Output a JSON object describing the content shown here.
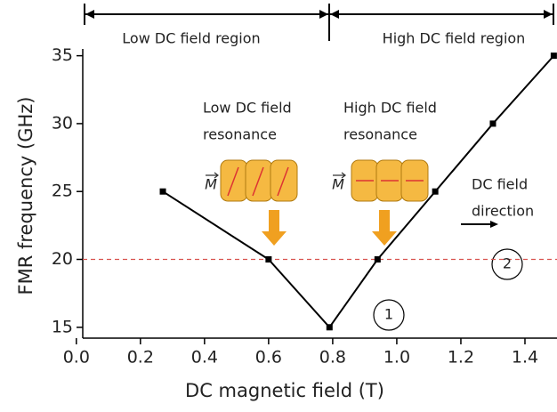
{
  "chart_data": {
    "type": "line",
    "x_label": "DC magnetic field (T)",
    "y_label": "FMR frequency (GHz)",
    "x": [
      0.27,
      0.6,
      0.79,
      0.94,
      1.12,
      1.3,
      1.49
    ],
    "series": [
      {
        "color": "#000000",
        "values": [
          25,
          20,
          15,
          20,
          25,
          30,
          35
        ]
      }
    ],
    "xlim": [
      0.02,
      1.5
    ],
    "ylim": [
      14.2,
      35.5
    ],
    "xticks": [
      {
        "value": 0,
        "label": "0.0"
      },
      {
        "value": 0.2,
        "label": "0.2"
      },
      {
        "value": 0.4,
        "label": "0.4"
      },
      {
        "value": 0.6,
        "label": "0.6"
      },
      {
        "value": 0.8,
        "label": "0.8"
      },
      {
        "value": 1,
        "label": "1.0"
      },
      {
        "value": 1.2,
        "label": "1.2"
      },
      {
        "value": 1.4,
        "label": "1.4"
      }
    ],
    "yticks": [
      15,
      20,
      25,
      30,
      35
    ],
    "reference_line": {
      "value": 20,
      "color": "#d9534f"
    },
    "annotations": [
      {
        "lines": [
          "Low DC field region"
        ]
      },
      {
        "lines": [
          "High DC field region"
        ]
      },
      {
        "lines": [
          "Low DC field",
          "resonance"
        ]
      },
      {
        "lines": [
          "High DC field",
          "resonance"
        ]
      },
      {
        "lines": [
          "DC field",
          "direction"
        ]
      },
      {
        "lines": [
          "1"
        ]
      },
      {
        "lines": [
          "2"
        ]
      },
      {
        "lines": [
          "M"
        ]
      },
      {
        "lines": [
          "M"
        ]
      }
    ]
  }
}
